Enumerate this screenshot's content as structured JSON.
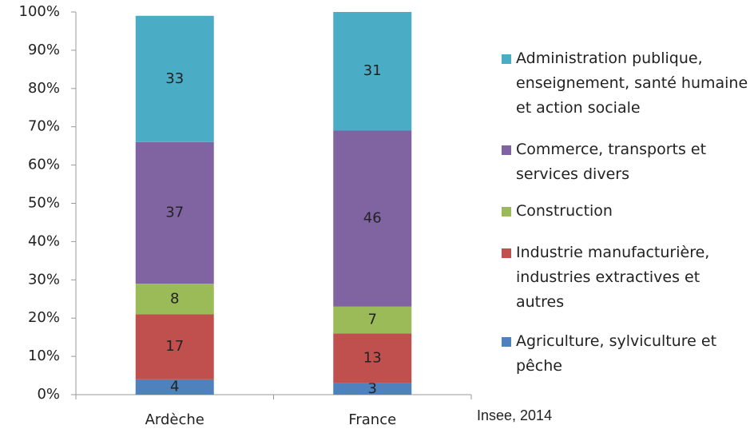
{
  "chart_data": {
    "type": "bar",
    "stacked": true,
    "categories": [
      "Ardèche",
      "France"
    ],
    "series": [
      {
        "name": "Agriculture, sylviculture et pêche",
        "color": "#4f81bd",
        "values": [
          4,
          3
        ]
      },
      {
        "name": "Industrie manufacturière, industries extractives et autres",
        "color": "#c0504d",
        "values": [
          17,
          13
        ]
      },
      {
        "name": "Construction",
        "color": "#9bbb59",
        "values": [
          8,
          7
        ]
      },
      {
        "name": "Commerce, transports et services divers",
        "color": "#8064a2",
        "values": [
          37,
          46
        ]
      },
      {
        "name": "Administration publique, enseignement, santé humaine et action sociale",
        "color": "#4bacc6",
        "values": [
          33,
          31
        ]
      }
    ],
    "ylim": [
      0,
      100
    ],
    "yticks": [
      {
        "value": 0,
        "label": "0%"
      },
      {
        "value": 10,
        "label": "10%"
      },
      {
        "value": 20,
        "label": "20%"
      },
      {
        "value": 30,
        "label": "30%"
      },
      {
        "value": 40,
        "label": "40%"
      },
      {
        "value": 50,
        "label": "50%"
      },
      {
        "value": 60,
        "label": "60%"
      },
      {
        "value": 70,
        "label": "70%"
      },
      {
        "value": 80,
        "label": "80%"
      },
      {
        "value": 90,
        "label": "90%"
      },
      {
        "value": 100,
        "label": "100%"
      }
    ],
    "grid": false,
    "source": "Insee, 2014"
  }
}
